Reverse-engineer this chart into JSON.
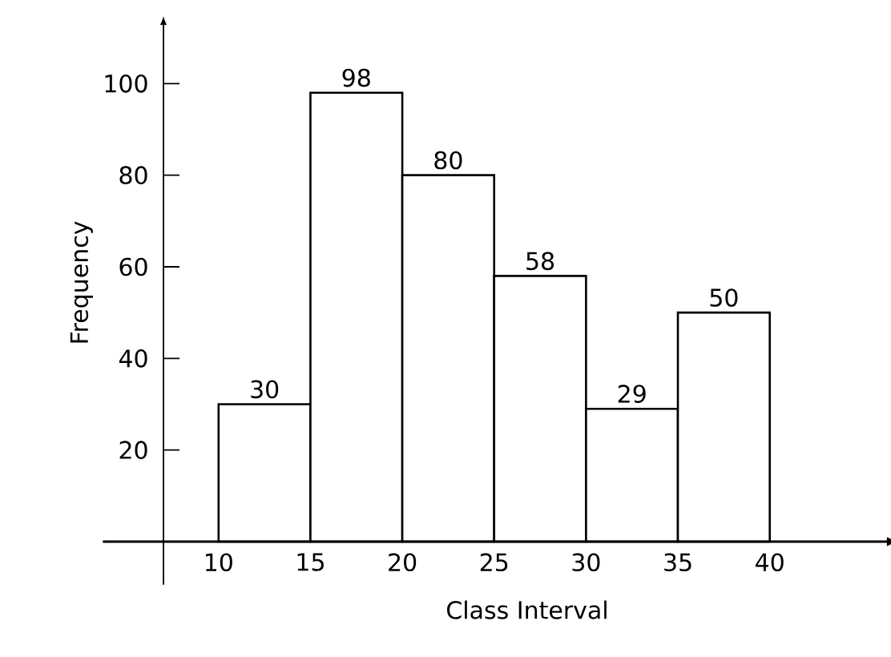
{
  "chart_data": {
    "type": "histogram",
    "xlabel": "Class Interval",
    "ylabel": "Frequency",
    "bins": [
      10,
      15,
      20,
      25,
      30,
      35,
      40
    ],
    "values": [
      30,
      98,
      80,
      58,
      29,
      50
    ],
    "color": "#000000",
    "xlim": [
      7,
      46.6
    ],
    "ylim": [
      0,
      113
    ],
    "xticks": [
      10,
      15,
      20,
      25,
      30,
      35,
      40
    ],
    "yticks": [
      20,
      40,
      60,
      80,
      100
    ],
    "data_labels": true
  }
}
